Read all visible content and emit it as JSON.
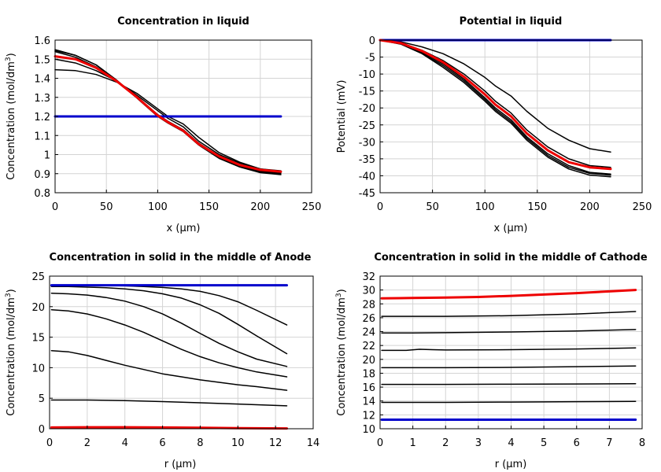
{
  "colors": {
    "initial": "#0000cc",
    "final": "#ee0000",
    "intermediate": "#000000"
  },
  "chart_data": [
    {
      "type": "line",
      "title": "Concentration in liquid",
      "xlabel": "x (µm)",
      "ylabel": "Concentration (mol/dm",
      "ylabel_sup": "3",
      "ylabel_end": ")",
      "xlim": [
        0,
        250
      ],
      "ylim": [
        0.8,
        1.6
      ],
      "xticks": [
        0,
        50,
        100,
        150,
        200,
        250
      ],
      "yticks": [
        0.8,
        0.9,
        1,
        1.1,
        1.2,
        1.3,
        1.4,
        1.5,
        1.6
      ],
      "ytick_labels": [
        "0.8",
        "0.9",
        "1",
        "1.1",
        "1.2",
        "1.3",
        "1.4",
        "1.5",
        "1.6"
      ],
      "grid": true,
      "series": [
        {
          "name": "initial",
          "role": "initial",
          "x": [
            0,
            220
          ],
          "y": [
            1.2,
            1.2
          ]
        },
        {
          "name": "t1",
          "role": "intermediate",
          "x": [
            0,
            20,
            40,
            60,
            80,
            100,
            110,
            125,
            140,
            160,
            180,
            200,
            220
          ],
          "y": [
            1.445,
            1.44,
            1.42,
            1.38,
            1.32,
            1.24,
            1.2,
            1.16,
            1.09,
            1.01,
            0.96,
            0.925,
            0.91
          ]
        },
        {
          "name": "t2",
          "role": "intermediate",
          "x": [
            0,
            20,
            40,
            60,
            80,
            100,
            110,
            125,
            140,
            160,
            180,
            200,
            220
          ],
          "y": [
            1.5,
            1.48,
            1.44,
            1.385,
            1.31,
            1.23,
            1.19,
            1.145,
            1.07,
            1.0,
            0.955,
            0.925,
            0.915
          ]
        },
        {
          "name": "t3",
          "role": "intermediate",
          "x": [
            0,
            20,
            40,
            60,
            80,
            100,
            110,
            125,
            140,
            160,
            180,
            200,
            220
          ],
          "y": [
            1.54,
            1.51,
            1.46,
            1.39,
            1.3,
            1.21,
            1.175,
            1.13,
            1.06,
            0.99,
            0.945,
            0.915,
            0.905
          ]
        },
        {
          "name": "t4",
          "role": "intermediate",
          "x": [
            0,
            20,
            40,
            60,
            80,
            100,
            110,
            125,
            140,
            160,
            180,
            200,
            220
          ],
          "y": [
            1.55,
            1.52,
            1.47,
            1.39,
            1.295,
            1.2,
            1.165,
            1.12,
            1.05,
            0.98,
            0.935,
            0.905,
            0.895
          ]
        },
        {
          "name": "t5",
          "role": "intermediate",
          "x": [
            0,
            20,
            40,
            60,
            80,
            100,
            110,
            125,
            140,
            160,
            180,
            200,
            220
          ],
          "y": [
            1.545,
            1.52,
            1.47,
            1.39,
            1.3,
            1.205,
            1.17,
            1.125,
            1.055,
            0.985,
            0.94,
            0.91,
            0.9
          ]
        },
        {
          "name": "final",
          "role": "final",
          "x": [
            0,
            20,
            40,
            60,
            80,
            100,
            110,
            125,
            140,
            160,
            180,
            200,
            220
          ],
          "y": [
            1.515,
            1.5,
            1.455,
            1.385,
            1.3,
            1.205,
            1.17,
            1.125,
            1.055,
            0.99,
            0.945,
            0.92,
            0.91
          ]
        }
      ]
    },
    {
      "type": "line",
      "title": "Potential in liquid",
      "xlabel": "x (µm)",
      "ylabel": "Potential (mV)",
      "xlim": [
        0,
        250
      ],
      "ylim": [
        -45,
        0
      ],
      "xticks": [
        0,
        50,
        100,
        150,
        200,
        250
      ],
      "yticks": [
        0,
        -5,
        -10,
        -15,
        -20,
        -25,
        -30,
        -35,
        -40,
        -45
      ],
      "ytick_labels": [
        "0",
        "-5",
        "-10",
        "-15",
        "-20",
        "-25",
        "-30",
        "-35",
        "-40",
        "-45"
      ],
      "grid": true,
      "series": [
        {
          "name": "initial",
          "role": "initial",
          "x": [
            0,
            220
          ],
          "y": [
            0,
            0
          ]
        },
        {
          "name": "t1",
          "role": "intermediate",
          "x": [
            0,
            20,
            40,
            60,
            80,
            100,
            110,
            125,
            140,
            160,
            180,
            200,
            220
          ],
          "y": [
            0,
            -0.5,
            -2,
            -4,
            -7,
            -11,
            -13.5,
            -16.5,
            -21,
            -26,
            -29.5,
            -32,
            -33
          ]
        },
        {
          "name": "t2",
          "role": "intermediate",
          "x": [
            0,
            20,
            40,
            60,
            80,
            100,
            110,
            125,
            140,
            160,
            180,
            200,
            220
          ],
          "y": [
            0,
            -0.8,
            -3,
            -6,
            -10,
            -15,
            -18,
            -21.5,
            -26.5,
            -31.5,
            -35,
            -37,
            -37.5
          ]
        },
        {
          "name": "t3",
          "role": "intermediate",
          "x": [
            0,
            20,
            40,
            60,
            80,
            100,
            110,
            125,
            140,
            160,
            180,
            200,
            220
          ],
          "y": [
            0,
            -1,
            -3.5,
            -7,
            -11.5,
            -17,
            -20,
            -23.5,
            -28.5,
            -33.5,
            -37,
            -39,
            -39.5
          ]
        },
        {
          "name": "t4",
          "role": "intermediate",
          "x": [
            0,
            20,
            40,
            60,
            80,
            100,
            110,
            125,
            140,
            160,
            180,
            200,
            220
          ],
          "y": [
            0,
            -1.2,
            -4,
            -8,
            -12.5,
            -18,
            -21,
            -24.5,
            -29.5,
            -34.5,
            -38,
            -39.8,
            -40.3
          ]
        },
        {
          "name": "t5",
          "role": "intermediate",
          "x": [
            0,
            20,
            40,
            60,
            80,
            100,
            110,
            125,
            140,
            160,
            180,
            200,
            220
          ],
          "y": [
            0,
            -1.1,
            -3.8,
            -7.5,
            -12,
            -17.5,
            -20.5,
            -24,
            -29,
            -34,
            -37.5,
            -39.3,
            -39.8
          ]
        },
        {
          "name": "final",
          "role": "final",
          "x": [
            0,
            20,
            40,
            60,
            80,
            100,
            110,
            125,
            140,
            160,
            180,
            200,
            220
          ],
          "y": [
            0,
            -0.9,
            -3.2,
            -6.5,
            -10.8,
            -16,
            -19,
            -22.5,
            -27.5,
            -32.5,
            -36,
            -37.5,
            -38
          ]
        }
      ]
    },
    {
      "type": "line",
      "title": "Concentration in solid in the middle of Anode",
      "xlabel": "r (µm)",
      "ylabel": "Concentration (mol/dm",
      "ylabel_sup": "3",
      "ylabel_end": ")",
      "xlim": [
        0,
        14
      ],
      "ylim": [
        0,
        25
      ],
      "xticks": [
        0,
        2,
        4,
        6,
        8,
        10,
        12,
        14
      ],
      "yticks": [
        0,
        5,
        10,
        15,
        20,
        25
      ],
      "ytick_labels": [
        "0",
        "5",
        "10",
        "15",
        "20",
        "25"
      ],
      "grid": true,
      "series": [
        {
          "name": "initial",
          "role": "initial",
          "x": [
            0.1,
            12.6
          ],
          "y": [
            23.5,
            23.5
          ]
        },
        {
          "name": "final",
          "role": "final",
          "x": [
            0.1,
            2,
            4,
            6,
            8,
            10,
            12.6
          ],
          "y": [
            0.2,
            0.25,
            0.25,
            0.2,
            0.15,
            0.1,
            0.05
          ]
        },
        {
          "name": "t1",
          "role": "intermediate",
          "x": [
            0.1,
            2,
            4,
            6,
            8,
            10,
            12.6
          ],
          "y": [
            4.7,
            4.7,
            4.6,
            4.45,
            4.25,
            4.05,
            3.75
          ]
        },
        {
          "name": "t2",
          "role": "intermediate",
          "x": [
            0.1,
            1,
            2,
            3,
            4,
            5,
            6,
            7,
            8,
            9,
            10,
            11,
            12.6
          ],
          "y": [
            12.8,
            12.6,
            12.0,
            11.2,
            10.4,
            9.7,
            9.0,
            8.5,
            8.0,
            7.6,
            7.2,
            6.9,
            6.3
          ]
        },
        {
          "name": "t3",
          "role": "intermediate",
          "x": [
            0.1,
            1,
            2,
            3,
            4,
            5,
            6,
            7,
            8,
            9,
            10,
            11,
            12.6
          ],
          "y": [
            19.5,
            19.3,
            18.8,
            18.0,
            17.0,
            15.8,
            14.4,
            13.0,
            11.8,
            10.8,
            10.0,
            9.3,
            8.5
          ]
        },
        {
          "name": "t4",
          "role": "intermediate",
          "x": [
            0.1,
            1,
            2,
            3,
            4,
            5,
            6,
            7,
            8,
            9,
            10,
            11,
            12.6
          ],
          "y": [
            22.2,
            22.1,
            21.9,
            21.5,
            20.9,
            20.0,
            18.8,
            17.3,
            15.6,
            14.0,
            12.6,
            11.4,
            10.2
          ]
        },
        {
          "name": "t5",
          "role": "intermediate",
          "x": [
            0.1,
            1,
            2,
            3,
            4,
            5,
            6,
            7,
            8,
            9,
            10,
            11,
            12.6
          ],
          "y": [
            23.3,
            23.3,
            23.2,
            23.1,
            22.9,
            22.6,
            22.1,
            21.4,
            20.3,
            18.9,
            17.1,
            15.2,
            12.3
          ]
        },
        {
          "name": "t6",
          "role": "intermediate",
          "x": [
            0.1,
            1,
            2,
            3,
            4,
            5,
            6,
            7,
            8,
            9,
            10,
            11,
            12.6
          ],
          "y": [
            23.5,
            23.5,
            23.5,
            23.45,
            23.4,
            23.3,
            23.15,
            22.9,
            22.5,
            21.8,
            20.8,
            19.4,
            17.0
          ]
        }
      ]
    },
    {
      "type": "line",
      "title": "Concentration in solid in the middle of Cathode",
      "xlabel": "r (µm)",
      "ylabel": "Concentration (mol/dm",
      "ylabel_sup": "3",
      "ylabel_end": ")",
      "xlim": [
        0,
        8
      ],
      "ylim": [
        10,
        32
      ],
      "xticks": [
        0,
        1,
        2,
        3,
        4,
        5,
        6,
        7,
        8
      ],
      "yticks": [
        10,
        12,
        14,
        16,
        18,
        20,
        22,
        24,
        26,
        28,
        30,
        32
      ],
      "ytick_labels": [
        "10",
        "12",
        "14",
        "16",
        "18",
        "20",
        "22",
        "24",
        "26",
        "28",
        "30",
        "32"
      ],
      "grid": true,
      "series": [
        {
          "name": "initial",
          "role": "initial",
          "x": [
            0.05,
            7.8
          ],
          "y": [
            11.3,
            11.3
          ]
        },
        {
          "name": "t1",
          "role": "intermediate",
          "x": [
            0.05,
            2,
            4,
            6,
            7.8
          ],
          "y": [
            13.8,
            13.8,
            13.85,
            13.9,
            13.95
          ]
        },
        {
          "name": "t2",
          "role": "intermediate",
          "x": [
            0.05,
            2,
            4,
            6,
            7.8
          ],
          "y": [
            16.4,
            16.4,
            16.42,
            16.45,
            16.5
          ]
        },
        {
          "name": "t3",
          "role": "intermediate",
          "x": [
            0.05,
            2,
            4,
            6,
            7.8
          ],
          "y": [
            18.8,
            18.8,
            18.85,
            18.95,
            19.05
          ]
        },
        {
          "name": "t4",
          "role": "intermediate",
          "x": [
            0.05,
            0.8,
            1.2,
            1.6,
            2,
            4,
            6,
            7.8
          ],
          "y": [
            21.3,
            21.3,
            21.45,
            21.4,
            21.35,
            21.4,
            21.5,
            21.65
          ]
        },
        {
          "name": "t5",
          "role": "intermediate",
          "x": [
            0.05,
            1,
            2,
            4,
            6,
            7.8
          ],
          "y": [
            23.8,
            23.8,
            23.85,
            23.95,
            24.1,
            24.3
          ]
        },
        {
          "name": "t6",
          "role": "intermediate",
          "x": [
            0.05,
            2,
            4,
            6,
            7.8
          ],
          "y": [
            26.2,
            26.2,
            26.3,
            26.55,
            26.9
          ]
        },
        {
          "name": "final",
          "role": "final",
          "x": [
            0.05,
            1,
            2,
            3,
            4,
            5,
            6,
            7,
            7.8
          ],
          "y": [
            28.8,
            28.85,
            28.9,
            29.0,
            29.15,
            29.35,
            29.55,
            29.8,
            30.0
          ]
        }
      ]
    }
  ]
}
